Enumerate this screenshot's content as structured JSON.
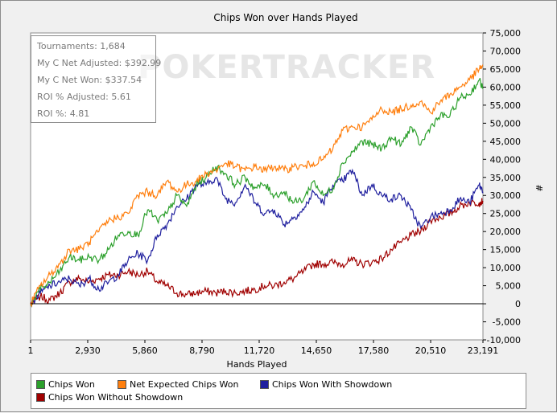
{
  "chart_data": {
    "type": "line",
    "title": "Chips Won over Hands Played",
    "xlabel": "Hands Played",
    "ylabel": "#",
    "xlim": [
      1,
      23191
    ],
    "ylim": [
      -10000,
      75000
    ],
    "x_ticks": [
      "1",
      "2,930",
      "5,860",
      "8,790",
      "11,720",
      "14,650",
      "17,580",
      "20,510",
      "23,191"
    ],
    "x_tick_values": [
      1,
      2930,
      5860,
      8790,
      11720,
      14650,
      17580,
      20510,
      23191
    ],
    "y_ticks": [
      "75,000",
      "70,000",
      "65,000",
      "60,000",
      "55,000",
      "50,000",
      "45,000",
      "40,000",
      "35,000",
      "30,000",
      "25,000",
      "20,000",
      "15,000",
      "10,000",
      "5,000",
      "0",
      "-5,000",
      "-10,000"
    ],
    "y_tick_values": [
      75000,
      70000,
      65000,
      60000,
      55000,
      50000,
      45000,
      40000,
      35000,
      30000,
      25000,
      20000,
      15000,
      10000,
      5000,
      0,
      -5000,
      -10000
    ],
    "x": [
      1,
      500,
      1000,
      1500,
      2000,
      2500,
      3000,
      3500,
      4000,
      4500,
      5000,
      5500,
      6000,
      6500,
      7000,
      7500,
      8000,
      8500,
      9000,
      9500,
      10000,
      10500,
      11000,
      11500,
      12000,
      12500,
      13000,
      13500,
      14000,
      14500,
      15000,
      15500,
      16000,
      16500,
      17000,
      17500,
      18000,
      18500,
      19000,
      19500,
      20000,
      20500,
      21000,
      21500,
      22000,
      22500,
      23000,
      23191
    ],
    "series": [
      {
        "name": "Chips Won",
        "color": "#2ca02c",
        "values": [
          0,
          4000,
          6000,
          9000,
          13000,
          12000,
          13000,
          12000,
          15000,
          19000,
          20000,
          19000,
          26000,
          23000,
          25000,
          30000,
          27000,
          33000,
          35000,
          38000,
          36000,
          33000,
          35000,
          32000,
          33000,
          30000,
          31000,
          28000,
          29000,
          34000,
          30000,
          32000,
          39000,
          42000,
          45000,
          44000,
          43000,
          46000,
          44000,
          49000,
          44000,
          49000,
          52000,
          52000,
          57000,
          58000,
          62000,
          59500
        ]
      },
      {
        "name": "Net Expected Chips Won",
        "color": "#ff7f0e",
        "values": [
          0,
          5000,
          8000,
          11000,
          15000,
          15000,
          17000,
          20000,
          23000,
          24000,
          25000,
          30000,
          31000,
          30000,
          34000,
          31000,
          33000,
          34000,
          36000,
          37000,
          39000,
          38000,
          37000,
          38000,
          37000,
          38000,
          37000,
          38000,
          38000,
          39000,
          40000,
          43000,
          48000,
          49000,
          49000,
          51000,
          54000,
          53000,
          54000,
          55000,
          56000,
          53000,
          56000,
          58000,
          60000,
          62000,
          65000,
          66000
        ]
      },
      {
        "name": "Chips Won With Showdown",
        "color": "#1f1f9e",
        "values": [
          0,
          3000,
          5000,
          6000,
          7000,
          5000,
          7000,
          4000,
          6000,
          8000,
          12000,
          14000,
          12000,
          19000,
          22000,
          27000,
          29000,
          33000,
          33000,
          35000,
          29000,
          28000,
          33000,
          28000,
          25000,
          26000,
          22000,
          24000,
          26000,
          31000,
          28000,
          33000,
          34000,
          37000,
          30000,
          33000,
          30000,
          29000,
          30000,
          26000,
          21000,
          24000,
          25000,
          26000,
          29000,
          28000,
          33000,
          31000
        ]
      },
      {
        "name": "Chips Won Without Showdown",
        "color": "#a00000",
        "values": [
          0,
          2000,
          1000,
          3000,
          6000,
          7000,
          6000,
          7000,
          8000,
          8000,
          9000,
          8000,
          9000,
          6000,
          5000,
          3000,
          2500,
          3000,
          3500,
          3000,
          3500,
          3000,
          3500,
          4000,
          5000,
          5000,
          6000,
          7000,
          9000,
          11000,
          11000,
          11500,
          11000,
          12000,
          11000,
          11500,
          12500,
          15000,
          17000,
          19000,
          20000,
          23000,
          24000,
          25000,
          27000,
          28000,
          28000,
          28500
        ]
      }
    ],
    "grid": false,
    "legend_placement": "bottom"
  },
  "stats": {
    "tournaments": "Tournaments: 1,684",
    "net_adjusted": "My C Net Adjusted: $392.99",
    "net_won": "My C Net Won: $337.54",
    "roi_adjusted": "ROI % Adjusted: 5.61",
    "roi": "ROI %: 4.81"
  },
  "watermark": "POKERTRACKER"
}
